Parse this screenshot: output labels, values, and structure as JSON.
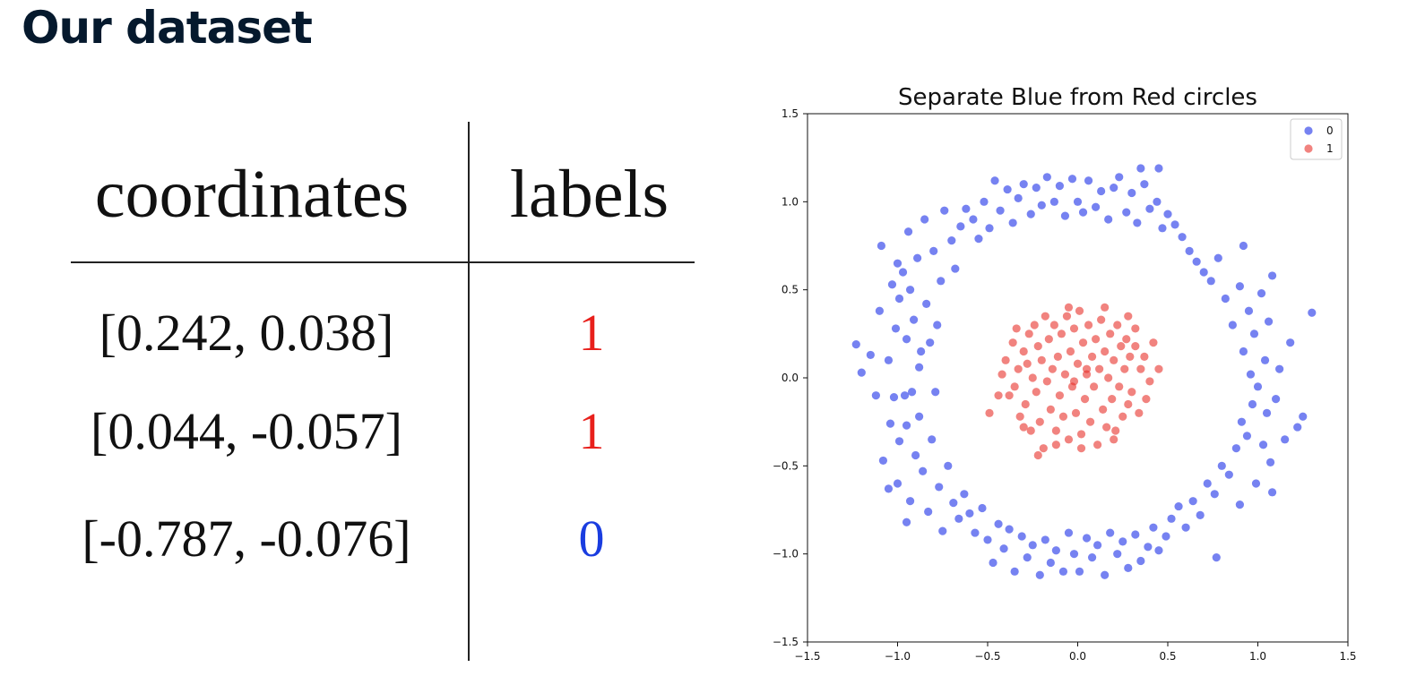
{
  "title": "Our dataset",
  "table": {
    "headers": [
      "coordinates",
      "labels"
    ],
    "rows": [
      {
        "coords": "[0.242, 0.038]",
        "label": "1",
        "color": "#e8201c"
      },
      {
        "coords": "[0.044, -0.057]",
        "label": "1",
        "color": "#e8201c"
      },
      {
        "coords": "[-0.787, -0.076]",
        "label": "0",
        "color": "#1a3de0"
      }
    ]
  },
  "colors": {
    "class0": "#1a2ee8",
    "class1": "#e8302a"
  },
  "chart_data": {
    "type": "scatter",
    "title": "Separate Blue from Red circles",
    "xlabel": "",
    "ylabel": "",
    "xlim": [
      -1.5,
      1.5
    ],
    "ylim": [
      -1.5,
      1.5
    ],
    "xticks": [
      -1.5,
      -1.0,
      -0.5,
      0.0,
      0.5,
      1.0,
      1.5
    ],
    "yticks": [
      -1.5,
      -1.0,
      -0.5,
      0.0,
      0.5,
      1.0,
      1.5
    ],
    "xtick_labels": [
      "−1.5",
      "−1.0",
      "−0.5",
      "0.0",
      "0.5",
      "1.0",
      "1.5"
    ],
    "ytick_labels": [
      "−1.5",
      "−1.0",
      "−0.5",
      "0.0",
      "0.5",
      "1.0",
      "1.5"
    ],
    "grid": false,
    "legend": "top-right",
    "series": [
      {
        "name": "0",
        "color": "#1a2ee8",
        "points": [
          [
            -1.23,
            0.19
          ],
          [
            -1.2,
            0.03
          ],
          [
            -1.15,
            0.13
          ],
          [
            -1.12,
            -0.1
          ],
          [
            -1.1,
            0.38
          ],
          [
            -1.09,
            0.75
          ],
          [
            -1.08,
            -0.47
          ],
          [
            -1.05,
            0.1
          ],
          [
            -1.04,
            -0.26
          ],
          [
            -1.03,
            0.53
          ],
          [
            -1.02,
            -0.11
          ],
          [
            -1.01,
            0.28
          ],
          [
            -1.0,
            -0.6
          ],
          [
            -0.99,
            0.45
          ],
          [
            -0.99,
            -0.36
          ],
          [
            -0.97,
            0.6
          ],
          [
            -0.96,
            -0.1
          ],
          [
            -0.95,
            0.22
          ],
          [
            -0.95,
            -0.27
          ],
          [
            -0.94,
            0.83
          ],
          [
            -0.93,
            0.5
          ],
          [
            -0.93,
            -0.7
          ],
          [
            -0.92,
            -0.08
          ],
          [
            -0.91,
            0.33
          ],
          [
            -0.9,
            -0.44
          ],
          [
            -0.89,
            0.68
          ],
          [
            -0.88,
            0.06
          ],
          [
            -0.88,
            -0.22
          ],
          [
            -0.87,
            0.15
          ],
          [
            -0.86,
            -0.53
          ],
          [
            -0.85,
            0.9
          ],
          [
            -0.84,
            0.42
          ],
          [
            -0.83,
            -0.76
          ],
          [
            -0.82,
            0.2
          ],
          [
            -0.81,
            -0.35
          ],
          [
            -0.8,
            0.72
          ],
          [
            -0.79,
            -0.08
          ],
          [
            -0.78,
            0.3
          ],
          [
            -0.77,
            -0.62
          ],
          [
            -0.76,
            0.55
          ],
          [
            -0.75,
            -0.87
          ],
          [
            -0.74,
            0.95
          ],
          [
            -0.72,
            -0.5
          ],
          [
            -0.7,
            0.78
          ],
          [
            -0.69,
            -0.71
          ],
          [
            -0.68,
            0.62
          ],
          [
            -0.66,
            -0.8
          ],
          [
            -0.65,
            0.86
          ],
          [
            -0.63,
            -0.66
          ],
          [
            -0.62,
            0.96
          ],
          [
            -0.6,
            -0.77
          ],
          [
            -0.58,
            0.9
          ],
          [
            -0.57,
            -0.88
          ],
          [
            -0.55,
            0.79
          ],
          [
            -0.53,
            -0.74
          ],
          [
            -0.52,
            1.0
          ],
          [
            -0.5,
            -0.92
          ],
          [
            -0.49,
            0.85
          ],
          [
            -0.47,
            -1.05
          ],
          [
            -0.46,
            1.12
          ],
          [
            -0.44,
            -0.83
          ],
          [
            -0.43,
            0.95
          ],
          [
            -0.41,
            -0.97
          ],
          [
            -0.39,
            1.07
          ],
          [
            -0.38,
            -0.86
          ],
          [
            -0.36,
            0.88
          ],
          [
            -0.35,
            -1.1
          ],
          [
            -0.33,
            1.02
          ],
          [
            -0.31,
            -0.9
          ],
          [
            -0.3,
            1.1
          ],
          [
            -0.28,
            -1.02
          ],
          [
            -0.26,
            0.93
          ],
          [
            -0.25,
            -0.95
          ],
          [
            -0.23,
            1.08
          ],
          [
            -0.21,
            -1.12
          ],
          [
            -0.2,
            0.98
          ],
          [
            -0.18,
            -0.92
          ],
          [
            -0.17,
            1.14
          ],
          [
            -0.15,
            -1.05
          ],
          [
            -0.13,
            1.0
          ],
          [
            -0.12,
            -0.98
          ],
          [
            -0.1,
            1.09
          ],
          [
            -0.08,
            -1.1
          ],
          [
            -0.07,
            0.92
          ],
          [
            -0.05,
            -0.88
          ],
          [
            -0.03,
            1.13
          ],
          [
            -0.02,
            -1.0
          ],
          [
            0.0,
            1.0
          ],
          [
            0.01,
            -1.1
          ],
          [
            0.03,
            0.94
          ],
          [
            0.05,
            -0.91
          ],
          [
            0.06,
            1.12
          ],
          [
            0.08,
            -1.02
          ],
          [
            0.1,
            0.97
          ],
          [
            0.11,
            -0.95
          ],
          [
            0.13,
            1.06
          ],
          [
            0.15,
            -1.12
          ],
          [
            0.17,
            0.9
          ],
          [
            0.18,
            -0.88
          ],
          [
            0.2,
            1.08
          ],
          [
            0.22,
            -1.0
          ],
          [
            0.23,
            1.14
          ],
          [
            0.25,
            -0.93
          ],
          [
            0.27,
            0.94
          ],
          [
            0.28,
            -1.08
          ],
          [
            0.3,
            1.05
          ],
          [
            0.32,
            -0.89
          ],
          [
            0.33,
            0.88
          ],
          [
            0.35,
            -1.04
          ],
          [
            0.37,
            1.1
          ],
          [
            0.39,
            -0.96
          ],
          [
            0.4,
            0.96
          ],
          [
            0.42,
            -0.85
          ],
          [
            0.44,
            1.0
          ],
          [
            0.45,
            -0.98
          ],
          [
            0.47,
            0.85
          ],
          [
            0.49,
            -0.9
          ],
          [
            0.5,
            0.93
          ],
          [
            0.52,
            -0.8
          ],
          [
            0.54,
            0.87
          ],
          [
            0.56,
            -0.73
          ],
          [
            0.58,
            0.8
          ],
          [
            0.6,
            -0.85
          ],
          [
            0.62,
            0.72
          ],
          [
            0.64,
            -0.7
          ],
          [
            0.66,
            0.66
          ],
          [
            0.68,
            -0.78
          ],
          [
            0.7,
            0.6
          ],
          [
            0.72,
            -0.6
          ],
          [
            0.74,
            0.55
          ],
          [
            0.76,
            -0.66
          ],
          [
            0.78,
            0.68
          ],
          [
            0.8,
            -0.5
          ],
          [
            0.82,
            0.45
          ],
          [
            0.84,
            -0.55
          ],
          [
            0.86,
            0.3
          ],
          [
            0.88,
            -0.4
          ],
          [
            0.9,
            0.52
          ],
          [
            0.91,
            -0.25
          ],
          [
            0.92,
            0.15
          ],
          [
            0.94,
            -0.33
          ],
          [
            0.95,
            0.38
          ],
          [
            0.96,
            0.02
          ],
          [
            0.97,
            -0.15
          ],
          [
            0.98,
            0.25
          ],
          [
            0.99,
            -0.6
          ],
          [
            1.0,
            -0.05
          ],
          [
            1.02,
            0.48
          ],
          [
            1.03,
            -0.38
          ],
          [
            1.04,
            0.1
          ],
          [
            1.05,
            -0.2
          ],
          [
            1.06,
            0.32
          ],
          [
            1.07,
            -0.48
          ],
          [
            1.08,
            0.58
          ],
          [
            1.1,
            -0.12
          ],
          [
            1.12,
            0.05
          ],
          [
            1.15,
            -0.35
          ],
          [
            1.18,
            0.2
          ],
          [
            1.22,
            -0.28
          ],
          [
            1.3,
            0.37
          ],
          [
            1.25,
            -0.22
          ],
          [
            -1.05,
            -0.63
          ],
          [
            -0.95,
            -0.82
          ],
          [
            0.9,
            -0.72
          ],
          [
            0.92,
            0.75
          ],
          [
            1.08,
            -0.65
          ],
          [
            -1.0,
            0.65
          ],
          [
            0.77,
            -1.02
          ],
          [
            0.45,
            1.19
          ],
          [
            0.35,
            1.19
          ]
        ]
      },
      {
        "name": "1",
        "color": "#e8302a",
        "points": [
          [
            -0.49,
            -0.2
          ],
          [
            -0.42,
            0.02
          ],
          [
            -0.4,
            0.1
          ],
          [
            -0.38,
            -0.1
          ],
          [
            -0.36,
            0.2
          ],
          [
            -0.35,
            -0.05
          ],
          [
            -0.33,
            0.05
          ],
          [
            -0.32,
            -0.22
          ],
          [
            -0.3,
            0.15
          ],
          [
            -0.29,
            -0.15
          ],
          [
            -0.28,
            0.08
          ],
          [
            -0.27,
            0.25
          ],
          [
            -0.26,
            -0.3
          ],
          [
            -0.25,
            0.0
          ],
          [
            -0.24,
            0.3
          ],
          [
            -0.23,
            -0.08
          ],
          [
            -0.22,
            0.18
          ],
          [
            -0.21,
            -0.25
          ],
          [
            -0.2,
            0.1
          ],
          [
            -0.19,
            -0.4
          ],
          [
            -0.18,
            0.35
          ],
          [
            -0.17,
            -0.02
          ],
          [
            -0.16,
            0.22
          ],
          [
            -0.15,
            -0.18
          ],
          [
            -0.14,
            0.05
          ],
          [
            -0.13,
            0.3
          ],
          [
            -0.12,
            -0.3
          ],
          [
            -0.11,
            0.12
          ],
          [
            -0.1,
            -0.1
          ],
          [
            -0.09,
            0.25
          ],
          [
            -0.08,
            -0.22
          ],
          [
            -0.07,
            0.02
          ],
          [
            -0.06,
            0.35
          ],
          [
            -0.05,
            -0.35
          ],
          [
            -0.04,
            0.15
          ],
          [
            -0.03,
            -0.05
          ],
          [
            -0.02,
            0.28
          ],
          [
            -0.01,
            -0.2
          ],
          [
            0.0,
            0.08
          ],
          [
            0.01,
            0.38
          ],
          [
            0.02,
            -0.32
          ],
          [
            0.03,
            0.2
          ],
          [
            0.04,
            -0.12
          ],
          [
            0.05,
            0.02
          ],
          [
            0.06,
            0.3
          ],
          [
            0.07,
            -0.25
          ],
          [
            0.08,
            0.12
          ],
          [
            0.09,
            -0.05
          ],
          [
            0.1,
            0.22
          ],
          [
            0.11,
            -0.38
          ],
          [
            0.12,
            0.05
          ],
          [
            0.13,
            0.33
          ],
          [
            0.14,
            -0.18
          ],
          [
            0.15,
            0.15
          ],
          [
            0.16,
            -0.28
          ],
          [
            0.17,
            0.0
          ],
          [
            0.18,
            0.25
          ],
          [
            0.19,
            -0.12
          ],
          [
            0.2,
            0.1
          ],
          [
            0.21,
            -0.3
          ],
          [
            0.22,
            0.3
          ],
          [
            0.23,
            -0.05
          ],
          [
            0.24,
            0.18
          ],
          [
            0.25,
            -0.22
          ],
          [
            0.26,
            0.05
          ],
          [
            0.27,
            0.22
          ],
          [
            0.28,
            -0.15
          ],
          [
            0.29,
            0.12
          ],
          [
            0.3,
            -0.08
          ],
          [
            0.32,
            0.18
          ],
          [
            0.34,
            -0.2
          ],
          [
            0.35,
            0.05
          ],
          [
            0.37,
            0.12
          ],
          [
            0.4,
            -0.02
          ],
          [
            0.42,
            0.2
          ],
          [
            0.45,
            0.05
          ],
          [
            -0.22,
            -0.44
          ],
          [
            0.28,
            0.35
          ],
          [
            -0.3,
            -0.28
          ],
          [
            0.15,
            0.4
          ],
          [
            -0.44,
            -0.1
          ],
          [
            0.38,
            -0.12
          ],
          [
            0.02,
            -0.4
          ],
          [
            -0.05,
            0.4
          ],
          [
            0.32,
            0.28
          ],
          [
            -0.34,
            0.28
          ],
          [
            0.2,
            -0.35
          ],
          [
            -0.12,
            -0.38
          ],
          [
            0.05,
            0.05
          ],
          [
            -0.02,
            -0.02
          ]
        ]
      }
    ]
  }
}
